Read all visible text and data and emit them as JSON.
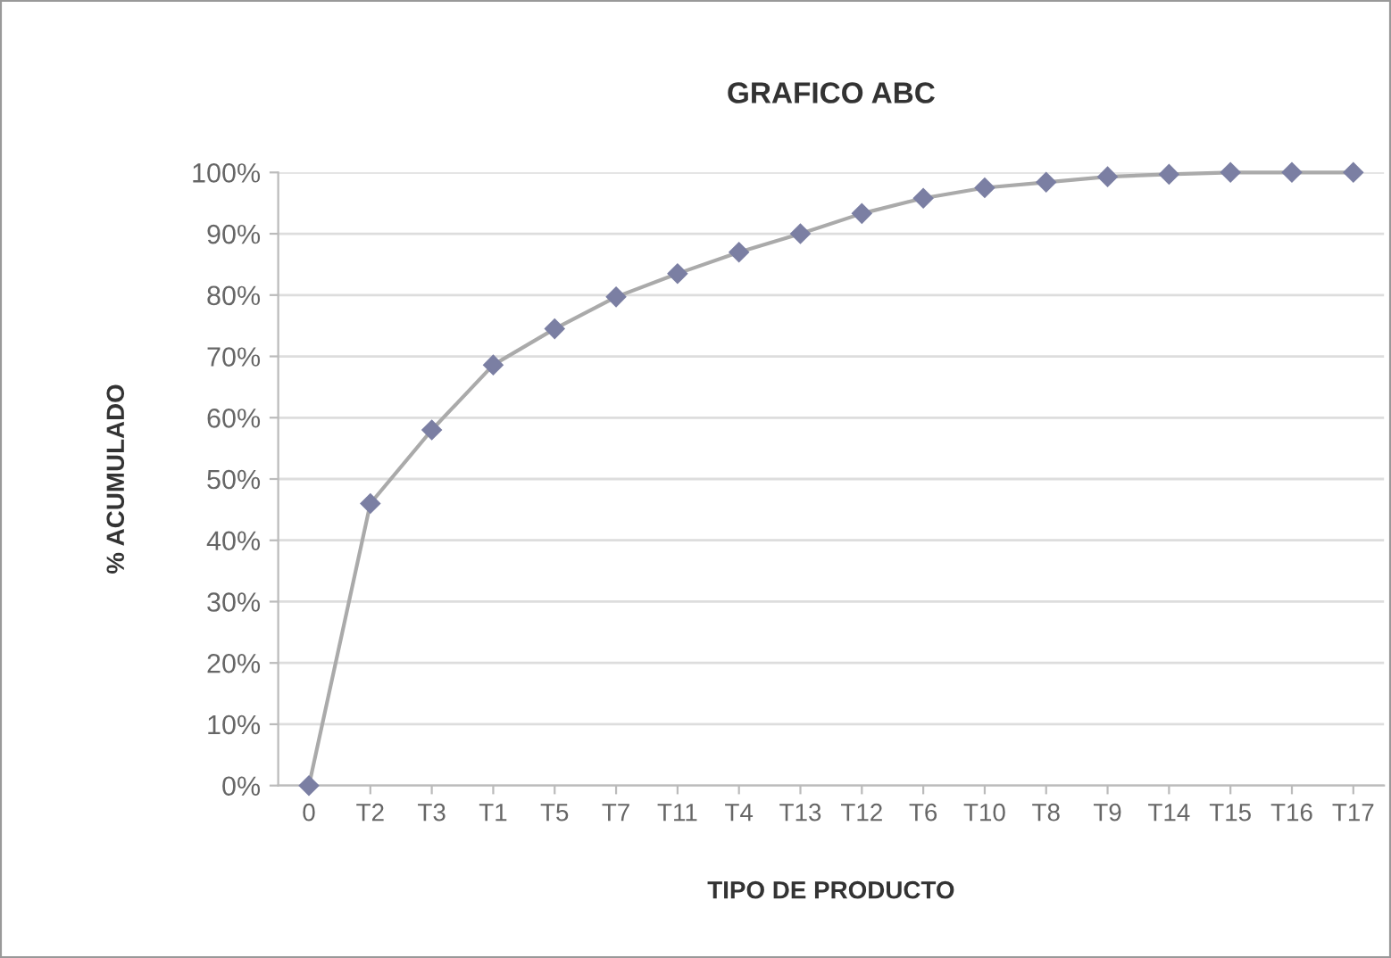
{
  "chart_data": {
    "type": "line",
    "title": "GRAFICO ABC",
    "xlabel": "TIPO DE PRODUCTO",
    "ylabel": "% ACUMULADO",
    "categories": [
      "0",
      "T2",
      "T3",
      "T1",
      "T5",
      "T7",
      "T11",
      "T4",
      "T13",
      "T12",
      "T6",
      "T10",
      "T8",
      "T9",
      "T14",
      "T15",
      "T16",
      "T17"
    ],
    "series": [
      {
        "color": "#7b7fa3",
        "values": [
          0,
          46,
          58,
          68.6,
          74.5,
          79.7,
          83.5,
          87,
          90,
          93.3,
          95.8,
          97.5,
          98.4,
          99.3,
          99.7,
          100,
          100,
          100
        ]
      }
    ],
    "ylim": [
      0,
      100
    ],
    "yticks": [
      {
        "value": 0,
        "label": "0%"
      },
      {
        "value": 10,
        "label": "10%"
      },
      {
        "value": 20,
        "label": "20%"
      },
      {
        "value": 30,
        "label": "30%"
      },
      {
        "value": 40,
        "label": "40%"
      },
      {
        "value": 50,
        "label": "50%"
      },
      {
        "value": 60,
        "label": "60%"
      },
      {
        "value": 70,
        "label": "70%"
      },
      {
        "value": 80,
        "label": "80%"
      },
      {
        "value": 90,
        "label": "90%"
      },
      {
        "value": 100,
        "label": "100%"
      }
    ],
    "grid": "y",
    "marker": "diamond",
    "line_style": "solid"
  }
}
